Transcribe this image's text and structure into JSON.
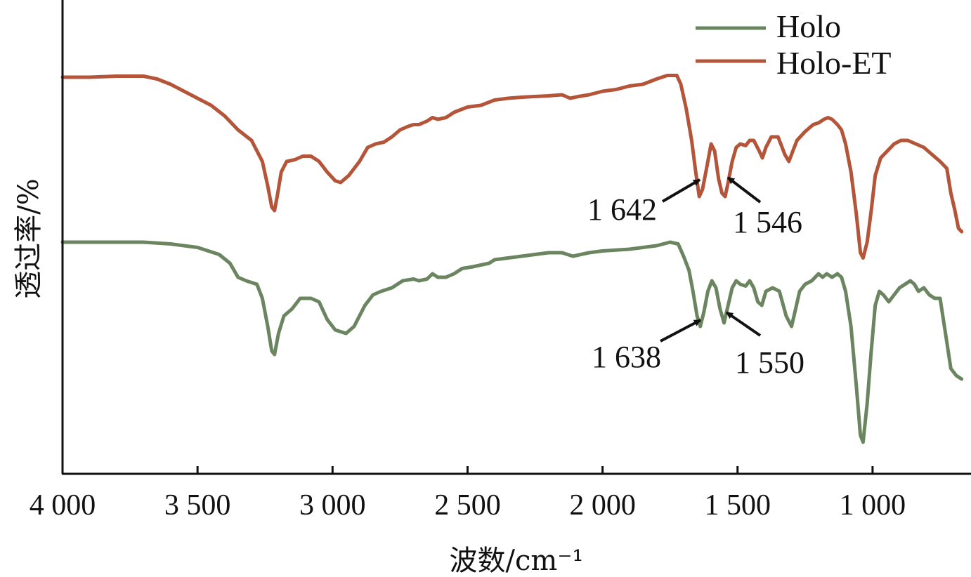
{
  "chart_data": {
    "type": "line",
    "title": "",
    "xlabel": "波数/cm⁻¹",
    "ylabel": "透过率/%",
    "xlim": [
      4000,
      670
    ],
    "x_reversed": true,
    "y_ticks_shown": false,
    "x_ticks": [
      4000,
      3500,
      3000,
      2500,
      2000,
      1500,
      1000
    ],
    "x_tick_labels": [
      "4 000",
      "3 500",
      "3 000",
      "2 500",
      "2 000",
      "1 500",
      "1 000"
    ],
    "legend_position": "top-right",
    "series": [
      {
        "name": "Holo",
        "color": "#6b8560",
        "points": [
          [
            4000,
            66
          ],
          [
            3800,
            66
          ],
          [
            3700,
            66
          ],
          [
            3600,
            65.5
          ],
          [
            3500,
            64.5
          ],
          [
            3420,
            62.5
          ],
          [
            3380,
            60
          ],
          [
            3350,
            56
          ],
          [
            3320,
            55
          ],
          [
            3280,
            54
          ],
          [
            3260,
            50
          ],
          [
            3240,
            42
          ],
          [
            3225,
            35
          ],
          [
            3215,
            34
          ],
          [
            3200,
            40
          ],
          [
            3180,
            45
          ],
          [
            3150,
            47
          ],
          [
            3120,
            50
          ],
          [
            3080,
            50
          ],
          [
            3050,
            49
          ],
          [
            3020,
            44
          ],
          [
            2990,
            41
          ],
          [
            2950,
            40
          ],
          [
            2920,
            42
          ],
          [
            2880,
            48
          ],
          [
            2850,
            51
          ],
          [
            2820,
            52
          ],
          [
            2780,
            53
          ],
          [
            2740,
            55
          ],
          [
            2700,
            55.5
          ],
          [
            2680,
            55
          ],
          [
            2650,
            55.5
          ],
          [
            2630,
            57
          ],
          [
            2610,
            56
          ],
          [
            2580,
            56
          ],
          [
            2550,
            57
          ],
          [
            2520,
            58.5
          ],
          [
            2480,
            59
          ],
          [
            2420,
            60
          ],
          [
            2400,
            61
          ],
          [
            2300,
            62
          ],
          [
            2200,
            63
          ],
          [
            2150,
            63
          ],
          [
            2110,
            62
          ],
          [
            2080,
            62.5
          ],
          [
            2050,
            63
          ],
          [
            2000,
            63.5
          ],
          [
            1900,
            64
          ],
          [
            1800,
            65
          ],
          [
            1750,
            66
          ],
          [
            1720,
            65.5
          ],
          [
            1700,
            62
          ],
          [
            1680,
            58
          ],
          [
            1665,
            52
          ],
          [
            1650,
            45
          ],
          [
            1638,
            42
          ],
          [
            1625,
            46
          ],
          [
            1610,
            52
          ],
          [
            1595,
            55
          ],
          [
            1580,
            53
          ],
          [
            1565,
            47
          ],
          [
            1550,
            43
          ],
          [
            1535,
            48
          ],
          [
            1520,
            53
          ],
          [
            1505,
            55
          ],
          [
            1490,
            54
          ],
          [
            1470,
            53.5
          ],
          [
            1455,
            55
          ],
          [
            1440,
            53
          ],
          [
            1425,
            49
          ],
          [
            1410,
            48
          ],
          [
            1395,
            52
          ],
          [
            1370,
            53
          ],
          [
            1345,
            52
          ],
          [
            1320,
            45
          ],
          [
            1300,
            42
          ],
          [
            1285,
            47
          ],
          [
            1270,
            52
          ],
          [
            1250,
            54
          ],
          [
            1225,
            55
          ],
          [
            1200,
            57
          ],
          [
            1185,
            56
          ],
          [
            1170,
            57
          ],
          [
            1150,
            56
          ],
          [
            1130,
            57
          ],
          [
            1115,
            56
          ],
          [
            1100,
            52
          ],
          [
            1080,
            42
          ],
          [
            1060,
            25
          ],
          [
            1045,
            11
          ],
          [
            1035,
            9
          ],
          [
            1020,
            20
          ],
          [
            1005,
            35
          ],
          [
            990,
            48
          ],
          [
            975,
            52
          ],
          [
            960,
            51
          ],
          [
            940,
            49
          ],
          [
            920,
            51
          ],
          [
            900,
            53
          ],
          [
            880,
            54
          ],
          [
            860,
            55
          ],
          [
            845,
            54
          ],
          [
            830,
            52
          ],
          [
            810,
            53
          ],
          [
            790,
            51
          ],
          [
            770,
            50
          ],
          [
            750,
            50
          ],
          [
            730,
            40
          ],
          [
            710,
            30
          ],
          [
            690,
            28
          ],
          [
            670,
            27
          ]
        ]
      },
      {
        "name": "Holo-ET",
        "color": "#b4553a",
        "points": [
          [
            4000,
            113
          ],
          [
            3900,
            113
          ],
          [
            3800,
            113.3
          ],
          [
            3700,
            113.3
          ],
          [
            3650,
            112.5
          ],
          [
            3600,
            111
          ],
          [
            3550,
            109
          ],
          [
            3500,
            107
          ],
          [
            3450,
            105
          ],
          [
            3400,
            102
          ],
          [
            3350,
            98
          ],
          [
            3300,
            95
          ],
          [
            3260,
            89
          ],
          [
            3240,
            82
          ],
          [
            3225,
            76
          ],
          [
            3215,
            75
          ],
          [
            3205,
            79
          ],
          [
            3190,
            86
          ],
          [
            3170,
            89
          ],
          [
            3140,
            89.5
          ],
          [
            3110,
            90.5
          ],
          [
            3080,
            90.5
          ],
          [
            3050,
            89
          ],
          [
            3020,
            86
          ],
          [
            2990,
            83.5
          ],
          [
            2970,
            83
          ],
          [
            2940,
            85
          ],
          [
            2900,
            89
          ],
          [
            2870,
            93
          ],
          [
            2840,
            94
          ],
          [
            2810,
            94.5
          ],
          [
            2780,
            96
          ],
          [
            2750,
            98
          ],
          [
            2720,
            99
          ],
          [
            2700,
            99.5
          ],
          [
            2680,
            99.5
          ],
          [
            2650,
            100.5
          ],
          [
            2630,
            101.5
          ],
          [
            2610,
            101
          ],
          [
            2580,
            101.5
          ],
          [
            2550,
            103
          ],
          [
            2500,
            104.5
          ],
          [
            2450,
            105
          ],
          [
            2400,
            106.5
          ],
          [
            2350,
            107
          ],
          [
            2300,
            107.3
          ],
          [
            2200,
            107.7
          ],
          [
            2150,
            108
          ],
          [
            2120,
            107
          ],
          [
            2090,
            107.5
          ],
          [
            2050,
            108
          ],
          [
            2000,
            109
          ],
          [
            1950,
            109.5
          ],
          [
            1900,
            110.5
          ],
          [
            1850,
            111
          ],
          [
            1800,
            112.5
          ],
          [
            1760,
            113.5
          ],
          [
            1725,
            113.5
          ],
          [
            1710,
            111
          ],
          [
            1690,
            104
          ],
          [
            1670,
            95
          ],
          [
            1655,
            86
          ],
          [
            1642,
            79
          ],
          [
            1630,
            81
          ],
          [
            1615,
            87
          ],
          [
            1598,
            94
          ],
          [
            1585,
            92
          ],
          [
            1570,
            84
          ],
          [
            1558,
            80
          ],
          [
            1546,
            79
          ],
          [
            1535,
            83
          ],
          [
            1520,
            89
          ],
          [
            1505,
            93
          ],
          [
            1490,
            94
          ],
          [
            1470,
            93.5
          ],
          [
            1455,
            95
          ],
          [
            1440,
            95
          ],
          [
            1420,
            92
          ],
          [
            1408,
            90
          ],
          [
            1395,
            93
          ],
          [
            1375,
            96
          ],
          [
            1350,
            96
          ],
          [
            1325,
            91
          ],
          [
            1310,
            89
          ],
          [
            1295,
            92
          ],
          [
            1280,
            95
          ],
          [
            1250,
            97.5
          ],
          [
            1220,
            99.5
          ],
          [
            1200,
            100
          ],
          [
            1180,
            101
          ],
          [
            1165,
            101.5
          ],
          [
            1150,
            101
          ],
          [
            1130,
            99.5
          ],
          [
            1115,
            98
          ],
          [
            1100,
            94
          ],
          [
            1080,
            86
          ],
          [
            1060,
            74
          ],
          [
            1045,
            63
          ],
          [
            1035,
            61.5
          ],
          [
            1020,
            66
          ],
          [
            1005,
            75
          ],
          [
            990,
            85
          ],
          [
            970,
            90
          ],
          [
            945,
            92
          ],
          [
            920,
            94
          ],
          [
            895,
            95
          ],
          [
            870,
            95
          ],
          [
            840,
            94
          ],
          [
            810,
            93
          ],
          [
            780,
            91
          ],
          [
            750,
            89
          ],
          [
            725,
            87
          ],
          [
            710,
            80
          ],
          [
            695,
            75
          ],
          [
            682,
            70
          ],
          [
            670,
            69
          ]
        ]
      }
    ],
    "annotations": [
      {
        "text": "1 642",
        "series": "Holo-ET",
        "x": 1642
      },
      {
        "text": "1 546",
        "series": "Holo-ET",
        "x": 1546
      },
      {
        "text": "1 638",
        "series": "Holo",
        "x": 1638
      },
      {
        "text": "1 550",
        "series": "Holo",
        "x": 1550
      }
    ]
  }
}
